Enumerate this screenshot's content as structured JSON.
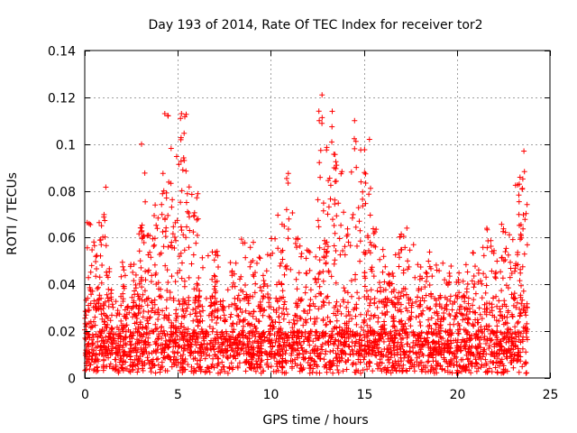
{
  "chart_data": {
    "type": "scatter",
    "title": "Day 193 of 2014, Rate Of TEC Index for receiver tor2",
    "xlabel": "GPS time / hours",
    "ylabel": "ROTI / TECUs",
    "xlim": [
      0,
      25
    ],
    "ylim": [
      0,
      0.14
    ],
    "xticks": [
      "0",
      "5",
      "10",
      "15",
      "20",
      "25"
    ],
    "yticks": [
      "0",
      "0.02",
      "0.04",
      "0.06",
      "0.08",
      "0.1",
      "0.12",
      "0.14"
    ],
    "grid": true,
    "marker": "+",
    "series_color": "#ff0000",
    "envelope": {
      "x": [
        0,
        0.3,
        0.5,
        0.9,
        1.0,
        1.3,
        2.0,
        2.6,
        3.0,
        3.1,
        3.5,
        3.9,
        4.3,
        4.5,
        4.8,
        5.1,
        5.3,
        5.6,
        6.0,
        6.2,
        7.0,
        8.0,
        8.5,
        9.0,
        9.5,
        10.0,
        10.5,
        10.8,
        11.5,
        12.0,
        12.5,
        12.7,
        13.0,
        13.3,
        13.6,
        14.0,
        14.5,
        14.9,
        15.2,
        15.5,
        16.0,
        16.5,
        17.0,
        17.3,
        18.0,
        18.5,
        19.0,
        19.5,
        20.0,
        20.5,
        21.0,
        21.5,
        22.0,
        22.5,
        23.0,
        23.3,
        23.5,
        23.8
      ],
      "peak": [
        0.038,
        0.067,
        0.062,
        0.07,
        0.083,
        0.055,
        0.05,
        0.053,
        0.065,
        0.1,
        0.065,
        0.075,
        0.095,
        0.113,
        0.08,
        0.105,
        0.113,
        0.09,
        0.08,
        0.055,
        0.055,
        0.05,
        0.06,
        0.068,
        0.055,
        0.06,
        0.07,
        0.089,
        0.06,
        0.055,
        0.07,
        0.122,
        0.1,
        0.114,
        0.095,
        0.09,
        0.11,
        0.1,
        0.102,
        0.065,
        0.055,
        0.05,
        0.062,
        0.065,
        0.05,
        0.055,
        0.05,
        0.05,
        0.045,
        0.05,
        0.058,
        0.065,
        0.06,
        0.07,
        0.062,
        0.088,
        0.098,
        0.075
      ]
    },
    "labeled_peaks": [
      {
        "x": 3.05,
        "y": 0.1
      },
      {
        "x": 4.3,
        "y": 0.113
      },
      {
        "x": 5.2,
        "y": 0.113
      },
      {
        "x": 12.75,
        "y": 0.121
      },
      {
        "x": 13.3,
        "y": 0.114
      },
      {
        "x": 14.5,
        "y": 0.11
      },
      {
        "x": 15.3,
        "y": 0.102
      },
      {
        "x": 23.6,
        "y": 0.097
      }
    ],
    "baseline_range": [
      0.002,
      0.02
    ]
  }
}
